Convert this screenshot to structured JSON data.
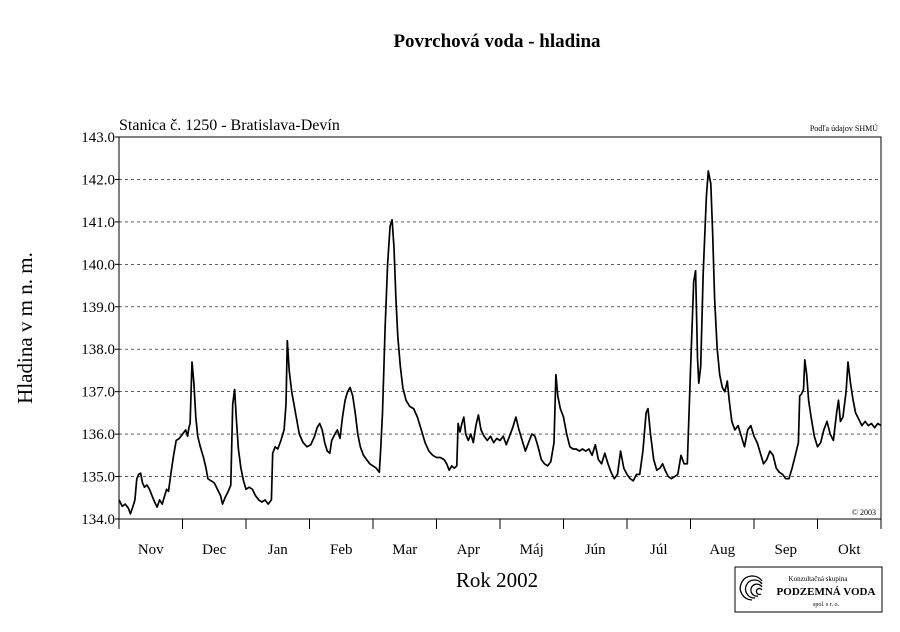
{
  "chart_data": {
    "type": "line",
    "title": "Povrchová voda - hladina",
    "subtitle": "Stanica č. 1250 - Bratislava-Devín",
    "source_note": "Podľa údajov SHMÚ",
    "copyright": "© 2003",
    "xlabel": "Rok 2002",
    "ylabel": "Hladina v m n. m.",
    "ylim": [
      134.0,
      143.0
    ],
    "y_ticks": [
      "134.0",
      "135.0",
      "136.0",
      "137.0",
      "138.0",
      "139.0",
      "140.0",
      "141.0",
      "142.0",
      "143.0"
    ],
    "x_range_months": [
      0,
      12
    ],
    "categories": [
      "Nov",
      "Dec",
      "Jan",
      "Feb",
      "Mar",
      "Apr",
      "Máj",
      "Jún",
      "Júl",
      "Aug",
      "Sep",
      "Okt"
    ],
    "grid": "horizontal-dashed",
    "series": [
      {
        "values": [
          [
            0.0,
            134.45
          ],
          [
            0.05,
            134.3
          ],
          [
            0.1,
            134.35
          ],
          [
            0.15,
            134.25
          ],
          [
            0.18,
            134.12
          ],
          [
            0.22,
            134.3
          ],
          [
            0.25,
            134.45
          ],
          [
            0.28,
            134.95
          ],
          [
            0.31,
            135.05
          ],
          [
            0.34,
            135.08
          ],
          [
            0.37,
            134.85
          ],
          [
            0.4,
            134.75
          ],
          [
            0.44,
            134.8
          ],
          [
            0.48,
            134.7
          ],
          [
            0.52,
            134.55
          ],
          [
            0.56,
            134.4
          ],
          [
            0.6,
            134.28
          ],
          [
            0.64,
            134.45
          ],
          [
            0.68,
            134.35
          ],
          [
            0.72,
            134.55
          ],
          [
            0.75,
            134.7
          ],
          [
            0.78,
            134.65
          ],
          [
            0.82,
            135.1
          ],
          [
            0.86,
            135.5
          ],
          [
            0.9,
            135.85
          ],
          [
            0.95,
            135.9
          ],
          [
            1.0,
            136.0
          ],
          [
            1.05,
            136.1
          ],
          [
            1.08,
            135.95
          ],
          [
            1.1,
            136.15
          ],
          [
            1.12,
            136.25
          ],
          [
            1.15,
            137.7
          ],
          [
            1.18,
            137.2
          ],
          [
            1.21,
            136.4
          ],
          [
            1.24,
            135.95
          ],
          [
            1.28,
            135.7
          ],
          [
            1.33,
            135.45
          ],
          [
            1.37,
            135.2
          ],
          [
            1.4,
            134.95
          ],
          [
            1.45,
            134.9
          ],
          [
            1.5,
            134.85
          ],
          [
            1.55,
            134.7
          ],
          [
            1.6,
            134.55
          ],
          [
            1.63,
            134.35
          ],
          [
            1.67,
            134.5
          ],
          [
            1.72,
            134.65
          ],
          [
            1.76,
            134.8
          ],
          [
            1.79,
            136.7
          ],
          [
            1.82,
            137.05
          ],
          [
            1.85,
            136.3
          ],
          [
            1.88,
            135.65
          ],
          [
            1.92,
            135.2
          ],
          [
            1.96,
            134.9
          ],
          [
            2.0,
            134.7
          ],
          [
            2.05,
            134.75
          ],
          [
            2.1,
            134.7
          ],
          [
            2.15,
            134.55
          ],
          [
            2.2,
            134.45
          ],
          [
            2.25,
            134.4
          ],
          [
            2.3,
            134.45
          ],
          [
            2.35,
            134.35
          ],
          [
            2.4,
            134.45
          ],
          [
            2.42,
            135.55
          ],
          [
            2.46,
            135.7
          ],
          [
            2.5,
            135.65
          ],
          [
            2.55,
            135.85
          ],
          [
            2.6,
            136.1
          ],
          [
            2.63,
            136.7
          ],
          [
            2.65,
            138.2
          ],
          [
            2.68,
            137.5
          ],
          [
            2.72,
            137.0
          ],
          [
            2.78,
            136.5
          ],
          [
            2.84,
            136.0
          ],
          [
            2.9,
            135.8
          ],
          [
            2.96,
            135.7
          ],
          [
            3.02,
            135.75
          ],
          [
            3.08,
            135.95
          ],
          [
            3.12,
            136.15
          ],
          [
            3.16,
            136.25
          ],
          [
            3.2,
            136.1
          ],
          [
            3.24,
            135.8
          ],
          [
            3.28,
            135.6
          ],
          [
            3.32,
            135.55
          ],
          [
            3.35,
            135.85
          ],
          [
            3.4,
            136.0
          ],
          [
            3.44,
            136.1
          ],
          [
            3.48,
            135.9
          ],
          [
            3.52,
            136.4
          ],
          [
            3.56,
            136.8
          ],
          [
            3.6,
            137.0
          ],
          [
            3.64,
            137.1
          ],
          [
            3.68,
            136.9
          ],
          [
            3.72,
            136.5
          ],
          [
            3.76,
            136.0
          ],
          [
            3.8,
            135.7
          ],
          [
            3.85,
            135.5
          ],
          [
            3.9,
            135.4
          ],
          [
            3.95,
            135.3
          ],
          [
            4.0,
            135.25
          ],
          [
            4.05,
            135.2
          ],
          [
            4.1,
            135.1
          ],
          [
            4.12,
            135.6
          ],
          [
            4.15,
            136.5
          ],
          [
            4.19,
            138.5
          ],
          [
            4.23,
            140.0
          ],
          [
            4.27,
            140.9
          ],
          [
            4.3,
            141.05
          ],
          [
            4.33,
            140.4
          ],
          [
            4.36,
            139.2
          ],
          [
            4.39,
            138.3
          ],
          [
            4.43,
            137.6
          ],
          [
            4.47,
            137.1
          ],
          [
            4.52,
            136.8
          ],
          [
            4.58,
            136.65
          ],
          [
            4.64,
            136.6
          ],
          [
            4.7,
            136.4
          ],
          [
            4.76,
            136.1
          ],
          [
            4.82,
            135.8
          ],
          [
            4.88,
            135.6
          ],
          [
            4.94,
            135.5
          ],
          [
            5.0,
            135.45
          ],
          [
            5.06,
            135.45
          ],
          [
            5.12,
            135.4
          ],
          [
            5.16,
            135.3
          ],
          [
            5.2,
            135.15
          ],
          [
            5.24,
            135.25
          ],
          [
            5.28,
            135.2
          ],
          [
            5.32,
            135.25
          ],
          [
            5.34,
            136.25
          ],
          [
            5.37,
            136.05
          ],
          [
            5.4,
            136.25
          ],
          [
            5.43,
            136.4
          ],
          [
            5.46,
            136.0
          ],
          [
            5.5,
            135.85
          ],
          [
            5.54,
            136.0
          ],
          [
            5.58,
            135.8
          ],
          [
            5.62,
            136.2
          ],
          [
            5.66,
            136.45
          ],
          [
            5.7,
            136.1
          ],
          [
            5.75,
            135.95
          ],
          [
            5.8,
            135.85
          ],
          [
            5.85,
            135.95
          ],
          [
            5.9,
            135.8
          ],
          [
            5.95,
            135.9
          ],
          [
            6.0,
            135.85
          ],
          [
            6.05,
            135.95
          ],
          [
            6.1,
            135.75
          ],
          [
            6.15,
            135.95
          ],
          [
            6.2,
            136.15
          ],
          [
            6.25,
            136.4
          ],
          [
            6.3,
            136.1
          ],
          [
            6.35,
            135.85
          ],
          [
            6.4,
            135.6
          ],
          [
            6.45,
            135.8
          ],
          [
            6.5,
            136.0
          ],
          [
            6.55,
            135.95
          ],
          [
            6.6,
            135.7
          ],
          [
            6.65,
            135.4
          ],
          [
            6.7,
            135.3
          ],
          [
            6.75,
            135.25
          ],
          [
            6.8,
            135.35
          ],
          [
            6.85,
            135.8
          ],
          [
            6.88,
            137.4
          ],
          [
            6.91,
            136.9
          ],
          [
            6.95,
            136.6
          ],
          [
            7.0,
            136.4
          ],
          [
            7.05,
            136.0
          ],
          [
            7.1,
            135.7
          ],
          [
            7.15,
            135.65
          ],
          [
            7.2,
            135.65
          ],
          [
            7.25,
            135.6
          ],
          [
            7.3,
            135.65
          ],
          [
            7.35,
            135.6
          ],
          [
            7.4,
            135.65
          ],
          [
            7.45,
            135.5
          ],
          [
            7.5,
            135.75
          ],
          [
            7.55,
            135.4
          ],
          [
            7.6,
            135.3
          ],
          [
            7.65,
            135.55
          ],
          [
            7.7,
            135.3
          ],
          [
            7.75,
            135.1
          ],
          [
            7.8,
            134.95
          ],
          [
            7.85,
            135.05
          ],
          [
            7.9,
            135.6
          ],
          [
            7.95,
            135.2
          ],
          [
            8.0,
            135.05
          ],
          [
            8.05,
            134.95
          ],
          [
            8.1,
            134.9
          ],
          [
            8.15,
            135.05
          ],
          [
            8.2,
            135.05
          ],
          [
            8.25,
            135.6
          ],
          [
            8.3,
            136.5
          ],
          [
            8.33,
            136.6
          ],
          [
            8.37,
            136.0
          ],
          [
            8.42,
            135.4
          ],
          [
            8.47,
            135.15
          ],
          [
            8.52,
            135.2
          ],
          [
            8.56,
            135.3
          ],
          [
            8.6,
            135.15
          ],
          [
            8.65,
            135.0
          ],
          [
            8.7,
            134.95
          ],
          [
            8.75,
            135.0
          ],
          [
            8.8,
            135.05
          ],
          [
            8.85,
            135.5
          ],
          [
            8.9,
            135.3
          ],
          [
            8.95,
            135.3
          ],
          [
            9.0,
            137.5
          ],
          [
            9.05,
            139.6
          ],
          [
            9.08,
            139.85
          ],
          [
            9.11,
            137.8
          ],
          [
            9.13,
            137.2
          ],
          [
            9.16,
            137.6
          ],
          [
            9.2,
            139.8
          ],
          [
            9.25,
            141.6
          ],
          [
            9.28,
            142.2
          ],
          [
            9.32,
            141.9
          ],
          [
            9.35,
            140.7
          ],
          [
            9.38,
            139.2
          ],
          [
            9.42,
            138.0
          ],
          [
            9.46,
            137.4
          ],
          [
            9.5,
            137.1
          ],
          [
            9.54,
            137.0
          ],
          [
            9.58,
            137.25
          ],
          [
            9.61,
            136.8
          ],
          [
            9.65,
            136.3
          ],
          [
            9.7,
            136.1
          ],
          [
            9.75,
            136.2
          ],
          [
            9.8,
            135.95
          ],
          [
            9.85,
            135.7
          ],
          [
            9.9,
            136.1
          ],
          [
            9.95,
            136.2
          ],
          [
            10.0,
            135.95
          ],
          [
            10.05,
            135.8
          ],
          [
            10.1,
            135.55
          ],
          [
            10.15,
            135.3
          ],
          [
            10.2,
            135.4
          ],
          [
            10.25,
            135.6
          ],
          [
            10.3,
            135.5
          ],
          [
            10.35,
            135.2
          ],
          [
            10.4,
            135.1
          ],
          [
            10.45,
            135.05
          ],
          [
            10.5,
            134.95
          ],
          [
            10.55,
            134.95
          ],
          [
            10.6,
            135.2
          ],
          [
            10.65,
            135.5
          ],
          [
            10.7,
            135.8
          ],
          [
            10.72,
            136.9
          ],
          [
            10.75,
            136.95
          ],
          [
            10.78,
            137.05
          ],
          [
            10.8,
            137.75
          ],
          [
            10.83,
            137.4
          ],
          [
            10.86,
            136.8
          ],
          [
            10.9,
            136.4
          ],
          [
            10.95,
            135.95
          ],
          [
            11.0,
            135.7
          ],
          [
            11.05,
            135.8
          ],
          [
            11.1,
            136.1
          ],
          [
            11.15,
            136.3
          ],
          [
            11.2,
            136.0
          ],
          [
            11.25,
            135.85
          ],
          [
            11.3,
            136.5
          ],
          [
            11.33,
            136.8
          ],
          [
            11.36,
            136.3
          ],
          [
            11.4,
            136.4
          ],
          [
            11.45,
            137.0
          ],
          [
            11.48,
            137.7
          ],
          [
            11.52,
            137.2
          ],
          [
            11.56,
            136.8
          ],
          [
            11.6,
            136.5
          ],
          [
            11.65,
            136.35
          ],
          [
            11.7,
            136.2
          ],
          [
            11.75,
            136.3
          ],
          [
            11.8,
            136.2
          ],
          [
            11.85,
            136.25
          ],
          [
            11.9,
            136.15
          ],
          [
            11.95,
            136.25
          ],
          [
            12.0,
            136.2
          ]
        ]
      }
    ]
  },
  "logo": {
    "line1": "Konzultačná skupina",
    "line2": "PODZEMNÁ VODA",
    "line3": "spol. s r. o."
  }
}
